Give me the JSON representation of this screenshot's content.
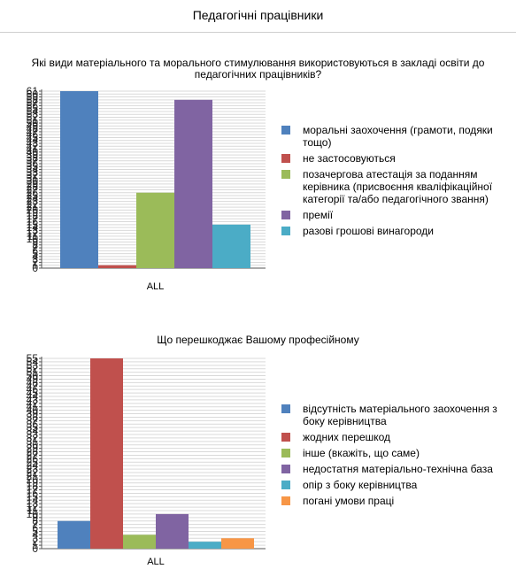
{
  "page": {
    "title": "Педагогічні працівники"
  },
  "chart_data": [
    {
      "type": "bar",
      "title_lines": [
        "Які види матеріального та морального стимулювання використовуються в закладі освіти до",
        "педагогічних працівників?"
      ],
      "categories": [
        "ALL"
      ],
      "ylim": [
        0,
        61
      ],
      "y_top_label": "61",
      "grid": true,
      "legend_position": "right",
      "series": [
        {
          "name": "моральні заохочення (грамоти, подяки тощо)",
          "legend_lines": [
            "моральні заохочення (грамоти, подяки",
            "тощо)"
          ],
          "color": "#4f81bd",
          "values": [
            61
          ]
        },
        {
          "name": "не застосовуються",
          "legend_lines": [
            "не застосовуються"
          ],
          "color": "#c0504d",
          "values": [
            1
          ]
        },
        {
          "name": "позачергова атестація за поданням керівника (присвоєння кваліфікаційної категорії та/або педагогічного звання)",
          "legend_lines": [
            "позачергова атестація за поданням",
            "керівника (присвоєння кваліфікаційної",
            "категорії та/або педагогічного звання)"
          ],
          "color": "#9bbb59",
          "values": [
            26
          ]
        },
        {
          "name": "премії",
          "legend_lines": [
            "премії"
          ],
          "color": "#8064a2",
          "values": [
            58
          ]
        },
        {
          "name": "разові грошові винагороди",
          "legend_lines": [
            "разові грошові винагороди"
          ],
          "color": "#4bacc6",
          "values": [
            15
          ]
        }
      ]
    },
    {
      "type": "bar",
      "title_lines": [
        "Що перешкоджає Вашому професійному"
      ],
      "categories": [
        "ALL"
      ],
      "ylim": [
        0,
        55
      ],
      "y_top_label": "55",
      "grid": true,
      "legend_position": "right",
      "series": [
        {
          "name": "відсутність матеріального заохочення з боку керівництва",
          "legend_lines": [
            "відсутність матеріального заохочення з",
            "боку керівництва"
          ],
          "color": "#4f81bd",
          "values": [
            8
          ]
        },
        {
          "name": "жодних перешкод",
          "legend_lines": [
            "жодних перешкод"
          ],
          "color": "#c0504d",
          "values": [
            55
          ]
        },
        {
          "name": "інше (вкажіть, що саме)",
          "legend_lines": [
            "інше (вкажіть, що саме)"
          ],
          "color": "#9bbb59",
          "values": [
            4
          ]
        },
        {
          "name": "недостатня матеріально-технічна база",
          "legend_lines": [
            "недостатня матеріально-технічна база"
          ],
          "color": "#8064a2",
          "values": [
            10
          ]
        },
        {
          "name": "опір з боку керівництва",
          "legend_lines": [
            "опір з боку керівництва"
          ],
          "color": "#4bacc6",
          "values": [
            2
          ]
        },
        {
          "name": "погані умови праці",
          "legend_lines": [
            "погані умови праці"
          ],
          "color": "#f79646",
          "values": [
            3
          ]
        }
      ]
    }
  ]
}
